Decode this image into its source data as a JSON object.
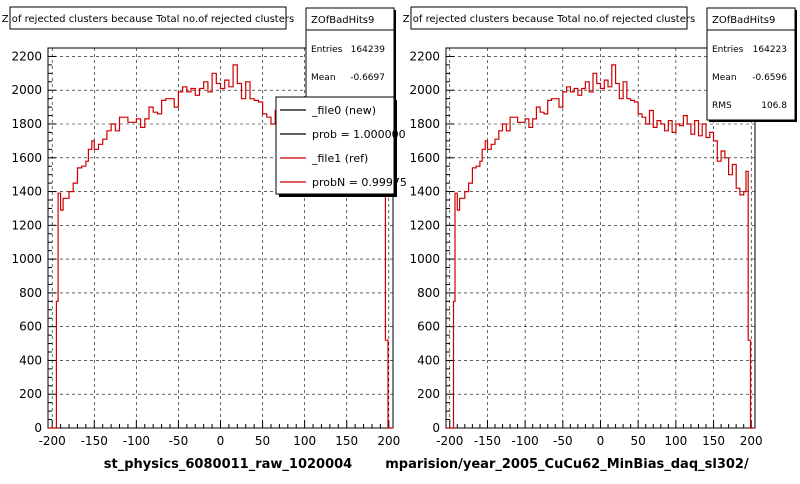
{
  "chart_data": [
    {
      "type": "step",
      "title": "Z of rejected clusters  because Total no.of rejected clusters",
      "xlabel": "st_physics_6080011_raw_1020004",
      "xlim": [
        -205,
        205
      ],
      "ylim": [
        0,
        2250
      ],
      "x_ticks": [
        "-200",
        "-150",
        "-100",
        "-50",
        "0",
        "50",
        "100",
        "150",
        "200"
      ],
      "y_ticks": [
        "0",
        "200",
        "400",
        "600",
        "800",
        "1000",
        "1200",
        "1400",
        "1600",
        "1800",
        "2000",
        "2200"
      ],
      "grid": true,
      "stats": {
        "name": "ZOfBadHits9",
        "rows": [
          {
            "label": "Entries",
            "value": "164239"
          },
          {
            "label": "Mean",
            "value": "-0.6697"
          }
        ]
      },
      "legend": {
        "placement": "top-right",
        "entries": [
          {
            "label": "_file0 (new)",
            "color": "#000000"
          },
          {
            "label": "prob = 1.000000",
            "color": "#000000"
          },
          {
            "label": "_file1 (ref)",
            "color": "#cc0000"
          },
          {
            "label": "probN = 0.99975",
            "color": "#cc0000"
          }
        ]
      },
      "series": [
        {
          "color": "#cc0000",
          "bins": [
            {
              "x": -205,
              "y": 0
            },
            {
              "x": -200,
              "y": 0
            },
            {
              "x": -195,
              "y": 750
            },
            {
              "x": -193,
              "y": 1390
            },
            {
              "x": -190,
              "y": 1290
            },
            {
              "x": -187,
              "y": 1360
            },
            {
              "x": -180,
              "y": 1400
            },
            {
              "x": -175,
              "y": 1450
            },
            {
              "x": -170,
              "y": 1540
            },
            {
              "x": -165,
              "y": 1550
            },
            {
              "x": -160,
              "y": 1580
            },
            {
              "x": -157,
              "y": 1650
            },
            {
              "x": -153,
              "y": 1700
            },
            {
              "x": -150,
              "y": 1650
            },
            {
              "x": -145,
              "y": 1680
            },
            {
              "x": -140,
              "y": 1710
            },
            {
              "x": -135,
              "y": 1760
            },
            {
              "x": -130,
              "y": 1800
            },
            {
              "x": -125,
              "y": 1760
            },
            {
              "x": -120,
              "y": 1840
            },
            {
              "x": -115,
              "y": 1840
            },
            {
              "x": -110,
              "y": 1810
            },
            {
              "x": -105,
              "y": 1810
            },
            {
              "x": -100,
              "y": 1830
            },
            {
              "x": -95,
              "y": 1780
            },
            {
              "x": -90,
              "y": 1830
            },
            {
              "x": -85,
              "y": 1900
            },
            {
              "x": -80,
              "y": 1870
            },
            {
              "x": -75,
              "y": 1860
            },
            {
              "x": -70,
              "y": 1940
            },
            {
              "x": -65,
              "y": 1950
            },
            {
              "x": -60,
              "y": 1950
            },
            {
              "x": -55,
              "y": 1900
            },
            {
              "x": -50,
              "y": 1990
            },
            {
              "x": -45,
              "y": 2020
            },
            {
              "x": -40,
              "y": 1990
            },
            {
              "x": -35,
              "y": 2010
            },
            {
              "x": -30,
              "y": 1970
            },
            {
              "x": -25,
              "y": 2010
            },
            {
              "x": -20,
              "y": 2050
            },
            {
              "x": -15,
              "y": 1990
            },
            {
              "x": -10,
              "y": 2100
            },
            {
              "x": -5,
              "y": 2040
            },
            {
              "x": 0,
              "y": 2010
            },
            {
              "x": 5,
              "y": 2060
            },
            {
              "x": 10,
              "y": 2020
            },
            {
              "x": 15,
              "y": 2150
            },
            {
              "x": 20,
              "y": 2040
            },
            {
              "x": 25,
              "y": 1950
            },
            {
              "x": 30,
              "y": 2050
            },
            {
              "x": 35,
              "y": 1950
            },
            {
              "x": 40,
              "y": 1940
            },
            {
              "x": 45,
              "y": 1930
            },
            {
              "x": 50,
              "y": 1860
            },
            {
              "x": 55,
              "y": 1840
            },
            {
              "x": 60,
              "y": 1800
            },
            {
              "x": 65,
              "y": 1880
            },
            {
              "x": 70,
              "y": 1780
            },
            {
              "x": 75,
              "y": 1820
            },
            {
              "x": 80,
              "y": 1800
            },
            {
              "x": 85,
              "y": 1760
            },
            {
              "x": 90,
              "y": 1820
            },
            {
              "x": 95,
              "y": 1750
            },
            {
              "x": 100,
              "y": 1800
            },
            {
              "x": 105,
              "y": 1790
            },
            {
              "x": 110,
              "y": 1850
            },
            {
              "x": 115,
              "y": 1800
            },
            {
              "x": 120,
              "y": 1740
            },
            {
              "x": 125,
              "y": 1820
            },
            {
              "x": 130,
              "y": 1730
            },
            {
              "x": 135,
              "y": 1800
            },
            {
              "x": 140,
              "y": 1720
            },
            {
              "x": 145,
              "y": 1750
            },
            {
              "x": 150,
              "y": 1700
            },
            {
              "x": 155,
              "y": 1580
            },
            {
              "x": 160,
              "y": 1640
            },
            {
              "x": 165,
              "y": 1600
            },
            {
              "x": 170,
              "y": 1500
            },
            {
              "x": 175,
              "y": 1560
            },
            {
              "x": 180,
              "y": 1420
            },
            {
              "x": 185,
              "y": 1380
            },
            {
              "x": 190,
              "y": 1400
            },
            {
              "x": 193,
              "y": 1520
            },
            {
              "x": 196,
              "y": 520
            },
            {
              "x": 199,
              "y": 0
            },
            {
              "x": 205,
              "y": 0
            }
          ]
        }
      ]
    },
    {
      "type": "step",
      "title": "Z of rejected clusters  because Total no.of rejected clusters",
      "xlabel": "mparision/year_2005_CuCu62_MinBias_daq_sl302/",
      "xlim": [
        -205,
        205
      ],
      "ylim": [
        0,
        2250
      ],
      "x_ticks": [
        "-200",
        "-150",
        "-100",
        "-50",
        "0",
        "50",
        "100",
        "150",
        "200"
      ],
      "y_ticks": [
        "0",
        "200",
        "400",
        "600",
        "800",
        "1000",
        "1200",
        "1400",
        "1600",
        "1800",
        "2000",
        "2200"
      ],
      "grid": true,
      "stats": {
        "name": "ZOfBadHits9",
        "rows": [
          {
            "label": "Entries",
            "value": "164223"
          },
          {
            "label": "Mean",
            "value": "-0.6596"
          },
          {
            "label": "RMS",
            "value": "106.8"
          }
        ]
      },
      "series": [
        {
          "color": "#cc0000",
          "bins": [
            {
              "x": -205,
              "y": 0
            },
            {
              "x": -200,
              "y": 0
            },
            {
              "x": -195,
              "y": 750
            },
            {
              "x": -193,
              "y": 1390
            },
            {
              "x": -190,
              "y": 1290
            },
            {
              "x": -187,
              "y": 1360
            },
            {
              "x": -180,
              "y": 1400
            },
            {
              "x": -175,
              "y": 1450
            },
            {
              "x": -170,
              "y": 1540
            },
            {
              "x": -165,
              "y": 1550
            },
            {
              "x": -160,
              "y": 1580
            },
            {
              "x": -157,
              "y": 1650
            },
            {
              "x": -153,
              "y": 1700
            },
            {
              "x": -150,
              "y": 1650
            },
            {
              "x": -145,
              "y": 1680
            },
            {
              "x": -140,
              "y": 1710
            },
            {
              "x": -135,
              "y": 1760
            },
            {
              "x": -130,
              "y": 1800
            },
            {
              "x": -125,
              "y": 1760
            },
            {
              "x": -120,
              "y": 1840
            },
            {
              "x": -115,
              "y": 1840
            },
            {
              "x": -110,
              "y": 1810
            },
            {
              "x": -105,
              "y": 1810
            },
            {
              "x": -100,
              "y": 1830
            },
            {
              "x": -95,
              "y": 1780
            },
            {
              "x": -90,
              "y": 1830
            },
            {
              "x": -85,
              "y": 1900
            },
            {
              "x": -80,
              "y": 1870
            },
            {
              "x": -75,
              "y": 1860
            },
            {
              "x": -70,
              "y": 1940
            },
            {
              "x": -65,
              "y": 1950
            },
            {
              "x": -60,
              "y": 1950
            },
            {
              "x": -55,
              "y": 1900
            },
            {
              "x": -50,
              "y": 1990
            },
            {
              "x": -45,
              "y": 2020
            },
            {
              "x": -40,
              "y": 1990
            },
            {
              "x": -35,
              "y": 2010
            },
            {
              "x": -30,
              "y": 1970
            },
            {
              "x": -25,
              "y": 2010
            },
            {
              "x": -20,
              "y": 2050
            },
            {
              "x": -15,
              "y": 1990
            },
            {
              "x": -10,
              "y": 2100
            },
            {
              "x": -5,
              "y": 2040
            },
            {
              "x": 0,
              "y": 2010
            },
            {
              "x": 5,
              "y": 2060
            },
            {
              "x": 10,
              "y": 2020
            },
            {
              "x": 15,
              "y": 2150
            },
            {
              "x": 20,
              "y": 2040
            },
            {
              "x": 25,
              "y": 1950
            },
            {
              "x": 30,
              "y": 2050
            },
            {
              "x": 35,
              "y": 1950
            },
            {
              "x": 40,
              "y": 1940
            },
            {
              "x": 45,
              "y": 1930
            },
            {
              "x": 50,
              "y": 1860
            },
            {
              "x": 55,
              "y": 1840
            },
            {
              "x": 60,
              "y": 1800
            },
            {
              "x": 65,
              "y": 1880
            },
            {
              "x": 70,
              "y": 1780
            },
            {
              "x": 75,
              "y": 1820
            },
            {
              "x": 80,
              "y": 1800
            },
            {
              "x": 85,
              "y": 1760
            },
            {
              "x": 90,
              "y": 1820
            },
            {
              "x": 95,
              "y": 1750
            },
            {
              "x": 100,
              "y": 1800
            },
            {
              "x": 105,
              "y": 1790
            },
            {
              "x": 110,
              "y": 1850
            },
            {
              "x": 115,
              "y": 1800
            },
            {
              "x": 120,
              "y": 1740
            },
            {
              "x": 125,
              "y": 1820
            },
            {
              "x": 130,
              "y": 1730
            },
            {
              "x": 135,
              "y": 1800
            },
            {
              "x": 140,
              "y": 1720
            },
            {
              "x": 145,
              "y": 1750
            },
            {
              "x": 150,
              "y": 1700
            },
            {
              "x": 155,
              "y": 1580
            },
            {
              "x": 160,
              "y": 1640
            },
            {
              "x": 165,
              "y": 1600
            },
            {
              "x": 170,
              "y": 1500
            },
            {
              "x": 175,
              "y": 1560
            },
            {
              "x": 180,
              "y": 1420
            },
            {
              "x": 185,
              "y": 1380
            },
            {
              "x": 190,
              "y": 1400
            },
            {
              "x": 193,
              "y": 1520
            },
            {
              "x": 196,
              "y": 520
            },
            {
              "x": 199,
              "y": 0
            },
            {
              "x": 205,
              "y": 0
            }
          ]
        }
      ]
    }
  ]
}
